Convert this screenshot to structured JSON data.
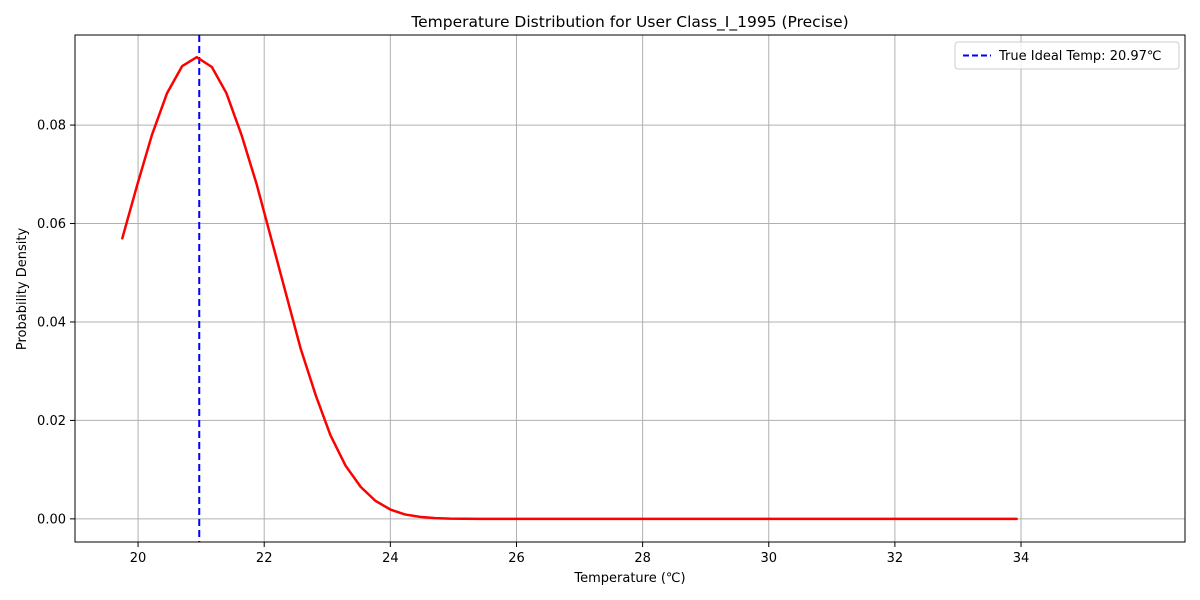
{
  "chart_data": {
    "type": "line",
    "title": "Temperature Distribution for User Class_I_1995 (Precise)",
    "xlabel": "Temperature (℃)",
    "ylabel": "Probability Density",
    "xlim": [
      19.0,
      36.6
    ],
    "ylim": [
      -0.0047,
      0.0983
    ],
    "xticks": [
      20,
      22,
      24,
      26,
      28,
      30,
      32,
      34
    ],
    "xtick_labels": [
      "20",
      "22",
      "24",
      "26",
      "28",
      "30",
      "32",
      "34"
    ],
    "yticks": [
      0.0,
      0.02,
      0.04,
      0.06,
      0.08
    ],
    "ytick_labels": [
      "0.00",
      "0.02",
      "0.04",
      "0.06",
      "0.08"
    ],
    "grid": true,
    "legend_position": "top-right",
    "series": [
      {
        "color": "#ff0000",
        "style": "solid",
        "x": [
          19.75,
          19.99,
          20.22,
          20.46,
          20.7,
          20.93,
          21.17,
          21.4,
          21.64,
          21.88,
          22.11,
          22.35,
          22.58,
          22.82,
          23.05,
          23.29,
          23.53,
          23.76,
          24.0,
          24.23,
          24.47,
          24.71,
          24.94,
          25.18,
          25.41,
          25.65,
          26.0,
          27.0,
          28.0,
          29.0,
          30.0,
          31.0,
          32.0,
          33.0,
          33.93
        ],
        "y": [
          0.057,
          0.068,
          0.078,
          0.0865,
          0.092,
          0.0938,
          0.0918,
          0.0865,
          0.078,
          0.068,
          0.057,
          0.0455,
          0.0345,
          0.025,
          0.017,
          0.0108,
          0.0065,
          0.0037,
          0.0019,
          0.0009,
          0.0004,
          0.00015,
          5e-05,
          2e-05,
          0.0,
          0.0,
          0.0,
          0.0,
          0.0,
          0.0,
          0.0,
          0.0,
          0.0,
          0.0,
          0.0
        ]
      }
    ],
    "vline": {
      "x": 20.97,
      "color": "#0000ff",
      "style": "dashed",
      "label": "True Ideal Temp: 20.97℃"
    }
  }
}
